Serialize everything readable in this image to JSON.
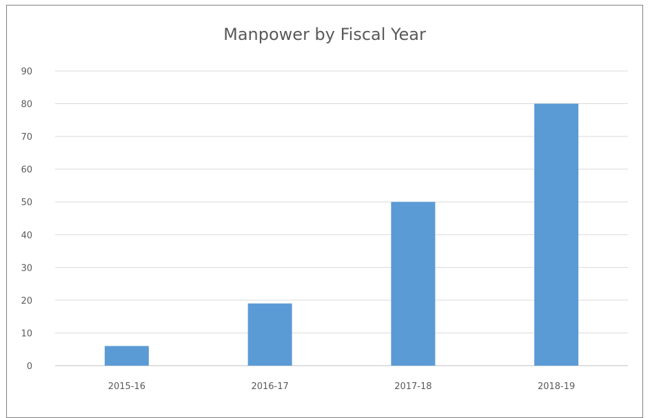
{
  "chart_data": {
    "type": "bar",
    "title": "Manpower by Fiscal Year",
    "categories": [
      "2015-16",
      "2016-17",
      "2017-18",
      "2018-19"
    ],
    "values": [
      6,
      19,
      50,
      80
    ],
    "ylim": [
      0,
      90
    ],
    "yticks": [
      "0",
      "10",
      "20",
      "30",
      "40",
      "50",
      "60",
      "70",
      "80",
      "90"
    ],
    "grid": true,
    "legend": "none",
    "xlabel": "",
    "ylabel": "",
    "colors": {
      "bar": "#5b9bd5",
      "grid": "#d9d9d9",
      "axis": "#bfbfbf",
      "text": "#595959"
    }
  }
}
